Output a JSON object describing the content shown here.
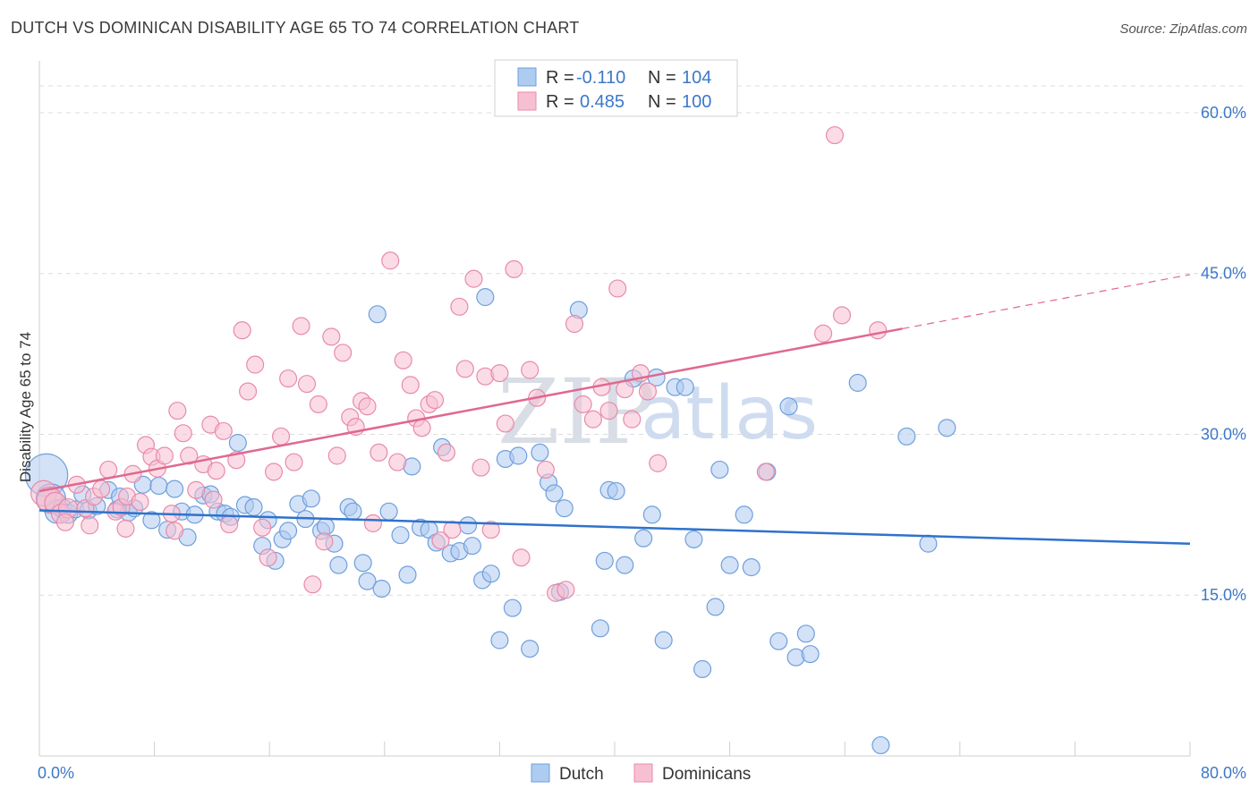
{
  "title": "DUTCH VS DOMINICAN DISABILITY AGE 65 TO 74 CORRELATION CHART",
  "source": "Source: ZipAtlas.com",
  "watermark": {
    "zip": "ZIP",
    "atlas": "atlas"
  },
  "colors": {
    "dutch_fill": "#aecbf0",
    "dutch_stroke": "#6f9fdc",
    "dutch_line": "#2f72cc",
    "dom_fill": "#f7c0d2",
    "dom_stroke": "#e88aaa",
    "dom_line": "#e0688f",
    "grid": "#dcdcdc",
    "tick_label": "#3c78c8"
  },
  "legend": {
    "rows": [
      {
        "r_label": "R =",
        "r_value": "-0.110",
        "n_label": "N =",
        "n_value": "104"
      },
      {
        "r_label": "R =",
        "r_value": "0.485",
        "n_label": "N =",
        "n_value": "100"
      }
    ]
  },
  "bottom_legend": [
    "Dutch",
    "Dominicans"
  ],
  "chart_data": {
    "type": "scatter",
    "title": "DUTCH VS DOMINICAN DISABILITY AGE 65 TO 74 CORRELATION CHART",
    "xlabel": "",
    "ylabel": "Disability Age 65 to 74",
    "xlim": [
      0,
      80
    ],
    "ylim": [
      0,
      64
    ],
    "x_tick_labels": [
      "0.0%",
      "80.0%"
    ],
    "y_ticks": [
      15,
      30,
      45,
      60
    ],
    "y_tick_labels": [
      "15.0%",
      "30.0%",
      "45.0%",
      "60.0%"
    ],
    "grid": "horizontal dashed",
    "legend_position": "top-center",
    "series": [
      {
        "name": "Dutch",
        "R": -0.11,
        "N": 104,
        "trend": {
          "x": [
            0,
            80
          ],
          "y": [
            22.9,
            19.8
          ],
          "dashed_from": null
        },
        "points": [
          [
            0.5,
            26.2,
            20
          ],
          [
            0.8,
            24.0,
            14
          ],
          [
            1.2,
            22.8,
            11
          ],
          [
            1.6,
            23.1,
            9
          ],
          [
            2.0,
            22.6,
            9
          ],
          [
            2.5,
            23.0,
            8
          ],
          [
            3.0,
            24.4,
            8
          ],
          [
            3.4,
            22.9,
            8
          ],
          [
            4.0,
            23.3,
            8
          ],
          [
            4.8,
            24.8,
            8
          ],
          [
            5.4,
            23.0,
            8
          ],
          [
            5.6,
            24.2,
            8
          ],
          [
            6.2,
            22.7,
            8
          ],
          [
            6.6,
            23.1,
            8
          ],
          [
            7.2,
            25.3,
            8
          ],
          [
            7.8,
            22.0,
            8
          ],
          [
            8.3,
            25.2,
            8
          ],
          [
            8.9,
            21.1,
            8
          ],
          [
            9.4,
            24.9,
            8
          ],
          [
            9.9,
            22.8,
            8
          ],
          [
            10.3,
            20.4,
            8
          ],
          [
            10.8,
            22.5,
            8
          ],
          [
            11.4,
            24.3,
            8
          ],
          [
            11.9,
            24.4,
            8
          ],
          [
            12.4,
            22.8,
            8
          ],
          [
            12.9,
            22.6,
            8
          ],
          [
            13.3,
            22.3,
            8
          ],
          [
            13.8,
            29.2,
            8
          ],
          [
            14.3,
            23.4,
            8
          ],
          [
            14.9,
            23.2,
            8
          ],
          [
            15.5,
            19.6,
            8
          ],
          [
            15.9,
            22.0,
            8
          ],
          [
            16.4,
            18.2,
            8
          ],
          [
            16.9,
            20.2,
            8
          ],
          [
            17.3,
            21.0,
            8
          ],
          [
            18.0,
            23.5,
            8
          ],
          [
            18.5,
            22.1,
            8
          ],
          [
            18.9,
            24.0,
            8
          ],
          [
            19.6,
            21.0,
            8
          ],
          [
            19.9,
            21.4,
            8
          ],
          [
            20.5,
            19.8,
            8
          ],
          [
            20.8,
            17.8,
            8
          ],
          [
            21.5,
            23.2,
            8
          ],
          [
            21.8,
            22.8,
            8
          ],
          [
            22.5,
            18.0,
            8
          ],
          [
            22.8,
            16.3,
            8
          ],
          [
            23.5,
            41.2,
            8
          ],
          [
            23.8,
            15.6,
            8
          ],
          [
            24.3,
            22.8,
            8
          ],
          [
            25.1,
            20.6,
            8
          ],
          [
            25.6,
            16.9,
            8
          ],
          [
            25.9,
            27.0,
            8
          ],
          [
            26.5,
            21.3,
            8
          ],
          [
            27.1,
            21.1,
            8
          ],
          [
            27.6,
            19.9,
            8
          ],
          [
            28.0,
            28.8,
            8
          ],
          [
            28.6,
            18.9,
            8
          ],
          [
            29.2,
            19.1,
            8
          ],
          [
            29.8,
            21.5,
            8
          ],
          [
            30.1,
            19.6,
            8
          ],
          [
            30.8,
            16.4,
            8
          ],
          [
            31.0,
            42.8,
            8
          ],
          [
            31.4,
            17.0,
            8
          ],
          [
            32.0,
            10.8,
            8
          ],
          [
            32.4,
            27.7,
            8
          ],
          [
            32.9,
            13.8,
            8
          ],
          [
            33.3,
            28.0,
            8
          ],
          [
            34.1,
            10.0,
            8
          ],
          [
            34.8,
            28.3,
            8
          ],
          [
            35.4,
            25.5,
            8
          ],
          [
            35.8,
            24.5,
            8
          ],
          [
            36.2,
            15.3,
            8
          ],
          [
            36.5,
            23.1,
            8
          ],
          [
            37.5,
            41.6,
            8
          ],
          [
            39.0,
            11.9,
            8
          ],
          [
            39.3,
            18.2,
            8
          ],
          [
            39.6,
            24.8,
            8
          ],
          [
            40.1,
            24.7,
            8
          ],
          [
            40.7,
            17.8,
            8
          ],
          [
            41.3,
            35.2,
            8
          ],
          [
            42.0,
            20.3,
            8
          ],
          [
            42.6,
            22.5,
            8
          ],
          [
            42.9,
            35.3,
            8
          ],
          [
            43.4,
            10.8,
            8
          ],
          [
            44.2,
            34.4,
            8
          ],
          [
            44.9,
            34.4,
            8
          ],
          [
            45.5,
            20.2,
            8
          ],
          [
            46.1,
            8.1,
            8
          ],
          [
            47.0,
            13.9,
            8
          ],
          [
            47.3,
            26.7,
            8
          ],
          [
            48.0,
            17.8,
            8
          ],
          [
            49.0,
            22.5,
            8
          ],
          [
            49.5,
            17.6,
            8
          ],
          [
            50.6,
            26.5,
            8
          ],
          [
            51.4,
            10.7,
            8
          ],
          [
            52.1,
            32.6,
            8
          ],
          [
            52.6,
            9.2,
            8
          ],
          [
            53.3,
            11.4,
            8
          ],
          [
            53.6,
            9.5,
            8
          ],
          [
            56.9,
            34.8,
            8
          ],
          [
            58.5,
            1.0,
            8
          ],
          [
            60.3,
            29.8,
            8
          ],
          [
            61.8,
            19.8,
            8
          ],
          [
            63.1,
            30.6,
            8
          ]
        ]
      },
      {
        "name": "Dominicans",
        "R": 0.485,
        "N": 100,
        "trend": {
          "x": [
            0,
            80
          ],
          "y": [
            24.7,
            44.9
          ],
          "dashed_from": 60
        },
        "points": [
          [
            0.3,
            24.5,
            12
          ],
          [
            0.7,
            23.9,
            12
          ],
          [
            1.1,
            23.6,
            10
          ],
          [
            1.5,
            22.6,
            9
          ],
          [
            2.0,
            23.1,
            9
          ],
          [
            2.6,
            25.3,
            8
          ],
          [
            3.2,
            23.1,
            8
          ],
          [
            3.8,
            24.2,
            8
          ],
          [
            4.3,
            24.9,
            8
          ],
          [
            4.8,
            26.7,
            8
          ],
          [
            5.3,
            22.8,
            8
          ],
          [
            5.7,
            23.2,
            8
          ],
          [
            6.1,
            24.2,
            8
          ],
          [
            6.5,
            26.3,
            8
          ],
          [
            7.0,
            23.7,
            8
          ],
          [
            7.4,
            29.0,
            8
          ],
          [
            7.8,
            27.9,
            8
          ],
          [
            8.2,
            26.8,
            8
          ],
          [
            8.7,
            28.0,
            8
          ],
          [
            9.2,
            22.6,
            8
          ],
          [
            9.6,
            32.2,
            8
          ],
          [
            10.0,
            30.1,
            8
          ],
          [
            10.4,
            28.0,
            8
          ],
          [
            10.9,
            24.8,
            8
          ],
          [
            11.4,
            27.2,
            8
          ],
          [
            11.9,
            30.9,
            8
          ],
          [
            12.3,
            26.6,
            8
          ],
          [
            12.8,
            30.3,
            8
          ],
          [
            13.2,
            21.6,
            8
          ],
          [
            13.7,
            27.6,
            8
          ],
          [
            14.1,
            39.7,
            8
          ],
          [
            14.5,
            34.0,
            8
          ],
          [
            15.0,
            36.5,
            8
          ],
          [
            15.5,
            21.3,
            8
          ],
          [
            15.9,
            18.5,
            8
          ],
          [
            16.3,
            26.5,
            8
          ],
          [
            16.8,
            29.8,
            8
          ],
          [
            17.3,
            35.2,
            8
          ],
          [
            17.7,
            27.4,
            8
          ],
          [
            18.2,
            40.1,
            8
          ],
          [
            18.6,
            34.7,
            8
          ],
          [
            19.0,
            16.0,
            8
          ],
          [
            19.4,
            32.8,
            8
          ],
          [
            19.8,
            20.0,
            8
          ],
          [
            20.3,
            39.1,
            8
          ],
          [
            20.7,
            28.0,
            8
          ],
          [
            21.1,
            37.6,
            8
          ],
          [
            21.6,
            31.6,
            8
          ],
          [
            22.0,
            30.7,
            8
          ],
          [
            22.4,
            33.1,
            8
          ],
          [
            22.8,
            32.6,
            8
          ],
          [
            23.2,
            21.7,
            8
          ],
          [
            23.6,
            28.3,
            8
          ],
          [
            24.4,
            46.2,
            8
          ],
          [
            24.9,
            27.4,
            8
          ],
          [
            25.3,
            36.9,
            8
          ],
          [
            25.8,
            34.6,
            8
          ],
          [
            26.2,
            31.5,
            8
          ],
          [
            26.6,
            30.6,
            8
          ],
          [
            27.1,
            32.8,
            8
          ],
          [
            27.5,
            33.2,
            8
          ],
          [
            27.9,
            20.1,
            8
          ],
          [
            28.3,
            28.3,
            8
          ],
          [
            28.7,
            21.1,
            8
          ],
          [
            29.2,
            41.9,
            8
          ],
          [
            29.6,
            36.1,
            8
          ],
          [
            30.2,
            44.5,
            8
          ],
          [
            30.7,
            26.9,
            8
          ],
          [
            31.0,
            35.4,
            8
          ],
          [
            31.4,
            21.1,
            8
          ],
          [
            32.0,
            35.7,
            8
          ],
          [
            32.4,
            31.0,
            8
          ],
          [
            33.0,
            45.4,
            8
          ],
          [
            33.5,
            18.5,
            8
          ],
          [
            34.1,
            36.0,
            8
          ],
          [
            34.6,
            33.4,
            8
          ],
          [
            35.2,
            26.7,
            8
          ],
          [
            35.9,
            15.2,
            8
          ],
          [
            36.6,
            15.5,
            8
          ],
          [
            37.2,
            40.3,
            8
          ],
          [
            37.8,
            32.8,
            8
          ],
          [
            38.5,
            31.4,
            8
          ],
          [
            39.1,
            34.4,
            8
          ],
          [
            39.6,
            32.2,
            8
          ],
          [
            40.2,
            43.6,
            8
          ],
          [
            40.7,
            34.2,
            8
          ],
          [
            41.2,
            31.4,
            8
          ],
          [
            41.8,
            35.7,
            8
          ],
          [
            42.3,
            34.0,
            8
          ],
          [
            43.0,
            27.3,
            8
          ],
          [
            50.5,
            26.5,
            8
          ],
          [
            54.5,
            39.4,
            8
          ],
          [
            55.3,
            57.9,
            8
          ],
          [
            55.8,
            41.1,
            8
          ],
          [
            58.3,
            39.7,
            8
          ],
          [
            1.8,
            21.8,
            8
          ],
          [
            3.5,
            21.5,
            8
          ],
          [
            6.0,
            21.2,
            8
          ],
          [
            9.4,
            21.0,
            8
          ],
          [
            12.1,
            23.9,
            8
          ]
        ]
      }
    ]
  }
}
